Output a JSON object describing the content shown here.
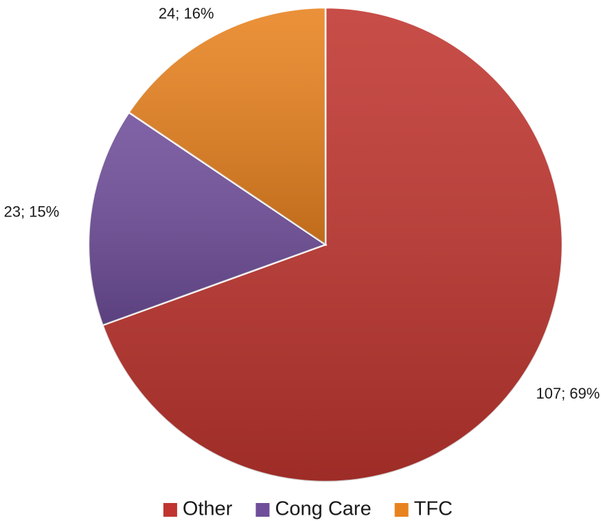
{
  "chart_data": {
    "type": "pie",
    "categories": [
      "Other",
      "Cong Care",
      "TFC"
    ],
    "values": [
      107,
      23,
      24
    ],
    "value_labels": [
      "107; 69%",
      "23; 15%",
      "24; 16%"
    ],
    "colors": [
      "#c0352f",
      "#6f4e9a",
      "#e8821f"
    ],
    "legend": "bottom"
  }
}
